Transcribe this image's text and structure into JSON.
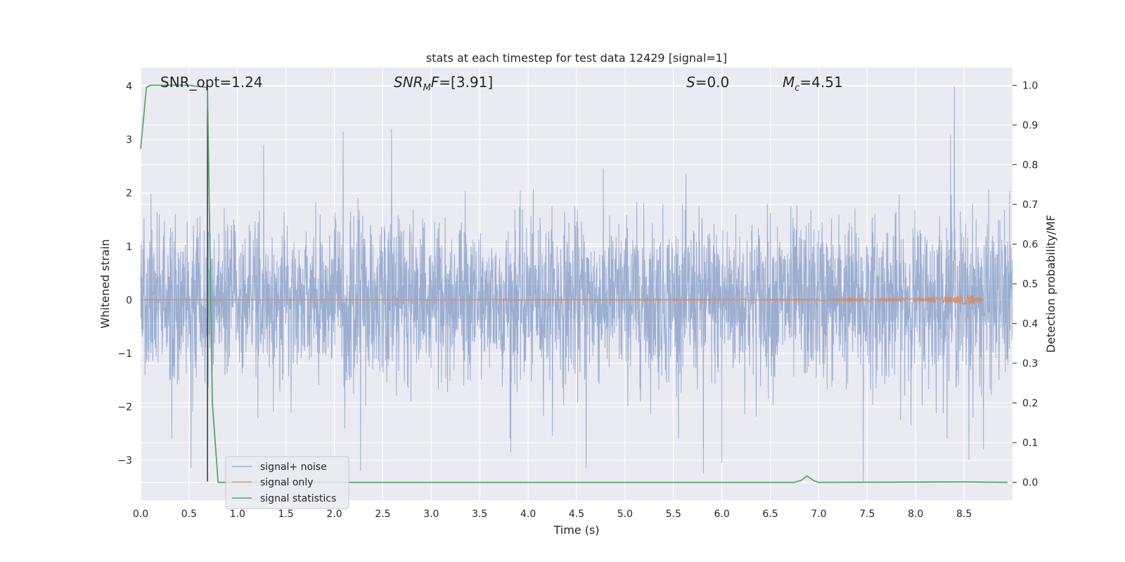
{
  "chart_data": {
    "type": "line",
    "title": "stats at each timestep for test data 12429 [signal=1]",
    "xlabel": "Time (s)",
    "ylabel": "Whitened strain",
    "ylabel_right": "Detection probability/MF",
    "xlim": [
      0.0,
      9.0
    ],
    "ylim": [
      -3.75,
      4.35
    ],
    "ylim_right": [
      -0.045,
      1.045
    ],
    "x_ticks": [
      "0.0",
      "0.5",
      "1.0",
      "1.5",
      "2.0",
      "2.5",
      "3.0",
      "3.5",
      "4.0",
      "4.5",
      "5.0",
      "5.5",
      "6.0",
      "6.5",
      "7.0",
      "7.5",
      "8.0",
      "8.5"
    ],
    "y_ticks": [
      "−3",
      "−2",
      "−1",
      "0",
      "1",
      "2",
      "3",
      "4"
    ],
    "y_ticks_right": [
      "0.0",
      "0.1",
      "0.2",
      "0.3",
      "0.4",
      "0.5",
      "0.6",
      "0.7",
      "0.8",
      "0.9",
      "1.0"
    ],
    "grid": true,
    "legend_position": "lower-left",
    "annotations": [
      {
        "text": "SNR_opt=1.24",
        "x": 0.2,
        "y": 4.0
      },
      {
        "text_main": "SNR",
        "text_sub": "M",
        "text_rest": "F=[3.91]",
        "x": 2.6,
        "y": 4.0
      },
      {
        "text_main": "S",
        "text_rest": "=0.0",
        "x": 5.6,
        "y": 4.0
      },
      {
        "text_main": "M",
        "text_sub": "c",
        "text_rest": "=4.51",
        "x": 6.6,
        "y": 4.0
      }
    ],
    "vertical_line": {
      "x": 0.69,
      "y": [
        -3.4,
        4.0
      ],
      "color": "#333333"
    },
    "series": [
      {
        "name": "signal+ noise",
        "color": "#4c72b0",
        "axis": "left",
        "x_range": [
          0.0,
          9.0
        ],
        "envelope_typical": 1.4,
        "spikes": [
          {
            "x": 0.52,
            "y": 3.0
          },
          {
            "x": 0.52,
            "y": -3.15
          },
          {
            "x": 1.27,
            "y": 2.9
          },
          {
            "x": 2.09,
            "y": 3.15
          },
          {
            "x": 2.27,
            "y": -3.2
          },
          {
            "x": 2.59,
            "y": 3.2
          },
          {
            "x": 3.82,
            "y": -2.85
          },
          {
            "x": 4.6,
            "y": -3.15
          },
          {
            "x": 5.81,
            "y": -3.25
          },
          {
            "x": 6.0,
            "y": -3.05
          },
          {
            "x": 7.46,
            "y": -3.4
          },
          {
            "x": 8.4,
            "y": 4.0
          },
          {
            "x": 8.36,
            "y": 3.1
          },
          {
            "x": 8.55,
            "y": -3.0
          },
          {
            "x": 8.7,
            "y": -2.8
          }
        ]
      },
      {
        "name": "signal only",
        "color": "#dd8452",
        "axis": "left",
        "x": [
          0.0,
          7.0,
          8.0,
          8.4,
          8.6,
          8.7
        ],
        "amplitude": [
          0.0,
          0.01,
          0.03,
          0.06,
          0.09,
          0.0
        ]
      },
      {
        "name": "signal statistics",
        "color": "#55a868",
        "axis": "right",
        "x": [
          0.0,
          0.06,
          0.1,
          0.5,
          0.68,
          0.69,
          0.74,
          0.8,
          1.0,
          6.75,
          6.82,
          6.88,
          6.95,
          7.0,
          8.5,
          8.95
        ],
        "y": [
          0.84,
          0.995,
          1.0,
          1.0,
          0.995,
          0.99,
          0.2,
          0.0,
          0.0,
          0.0,
          0.005,
          0.016,
          0.004,
          0.0,
          0.001,
          0.0
        ]
      }
    ]
  }
}
